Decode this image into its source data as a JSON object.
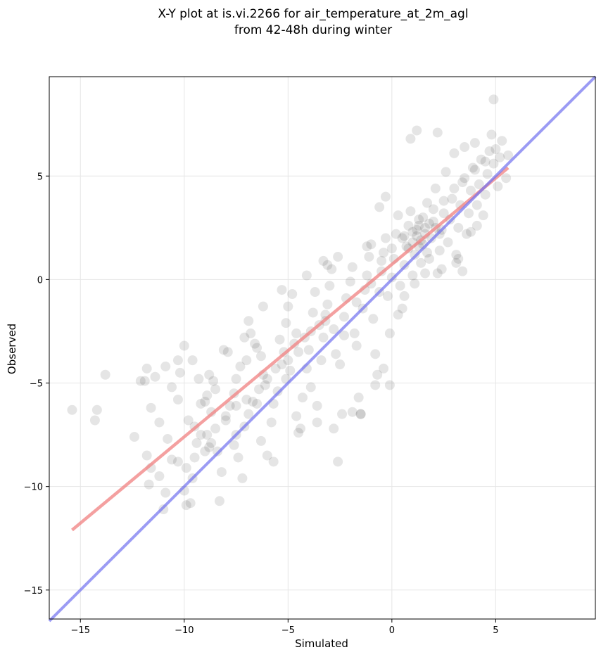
{
  "chart_data": {
    "type": "scatter",
    "title": "X-Y plot at is.vi.2266 for air_temperature_at_2m_agl",
    "subtitle": "from 42-48h during winter",
    "xlabel": "Simulated",
    "ylabel": "Observed",
    "xlim": [
      -16.5,
      9.8
    ],
    "ylim": [
      -16.4,
      9.8
    ],
    "xticks": [
      -15,
      -10,
      -5,
      0,
      5
    ],
    "yticks": [
      -15,
      -10,
      -5,
      0,
      5
    ],
    "xtick_labels": [
      "−15",
      "−10",
      "−5",
      "0",
      "5"
    ],
    "ytick_labels": [
      "−15",
      "−10",
      "−5",
      "0",
      "5"
    ],
    "grid": true,
    "colors": {
      "points": "#000000",
      "fit_line": "#f08080",
      "identity_line": "#7070f0"
    },
    "fit_line": {
      "x": [
        -15.4,
        5.6
      ],
      "y": [
        -12.1,
        5.4
      ]
    },
    "identity_line": {
      "x": [
        -16.5,
        9.8
      ],
      "y": [
        -16.5,
        9.8
      ]
    },
    "points": [
      [
        -15.4,
        -6.3
      ],
      [
        -14.2,
        -6.3
      ],
      [
        -14.3,
        -6.8
      ],
      [
        -13.8,
        -4.6
      ],
      [
        -12.4,
        -7.6
      ],
      [
        -11.9,
        -4.9
      ],
      [
        -11.8,
        -4.3
      ],
      [
        -11.4,
        -4.7
      ],
      [
        -11.2,
        -6.9
      ],
      [
        -11.8,
        -8.5
      ],
      [
        -11.6,
        -9.1
      ],
      [
        -11.7,
        -9.9
      ],
      [
        -11.2,
        -9.5
      ],
      [
        -10.9,
        -10.3
      ],
      [
        -11.0,
        -11.1
      ],
      [
        -10.8,
        -7.7
      ],
      [
        -10.6,
        -8.7
      ],
      [
        -10.3,
        -5.8
      ],
      [
        -10.2,
        -4.5
      ],
      [
        -10.0,
        -3.2
      ],
      [
        -10.6,
        -5.2
      ],
      [
        -9.8,
        -6.8
      ],
      [
        -9.5,
        -7.1
      ],
      [
        -9.2,
        -7.5
      ],
      [
        -9.0,
        -8.3
      ],
      [
        -9.9,
        -9.1
      ],
      [
        -9.5,
        -8.6
      ],
      [
        -10.0,
        -10.2
      ],
      [
        -9.7,
        -10.8
      ],
      [
        -9.9,
        -10.9
      ],
      [
        -9.0,
        -5.9
      ],
      [
        -9.2,
        -6.0
      ],
      [
        -8.9,
        -5.6
      ],
      [
        -8.7,
        -6.4
      ],
      [
        -9.3,
        -4.8
      ],
      [
        -8.8,
        -4.6
      ],
      [
        -8.6,
        -4.9
      ],
      [
        -8.5,
        -5.3
      ],
      [
        -8.7,
        -7.9
      ],
      [
        -8.4,
        -8.3
      ],
      [
        -8.2,
        -9.3
      ],
      [
        -8.3,
        -10.7
      ],
      [
        -8.0,
        -6.8
      ],
      [
        -7.8,
        -6.1
      ],
      [
        -7.6,
        -5.5
      ],
      [
        -7.5,
        -4.8
      ],
      [
        -7.3,
        -4.2
      ],
      [
        -7.0,
        -3.9
      ],
      [
        -7.9,
        -3.5
      ],
      [
        -7.6,
        -8.0
      ],
      [
        -7.4,
        -8.6
      ],
      [
        -7.2,
        -9.6
      ],
      [
        -7.1,
        -7.1
      ],
      [
        -6.9,
        -6.5
      ],
      [
        -6.7,
        -5.9
      ],
      [
        -6.8,
        -2.6
      ],
      [
        -6.9,
        -2.0
      ],
      [
        -6.5,
        -3.3
      ],
      [
        -6.3,
        -3.7
      ],
      [
        -6.2,
        -4.6
      ],
      [
        -6.1,
        -5.1
      ],
      [
        -6.3,
        -7.8
      ],
      [
        -6.0,
        -8.5
      ],
      [
        -5.8,
        -6.9
      ],
      [
        -5.7,
        -6.0
      ],
      [
        -5.5,
        -5.4
      ],
      [
        -5.4,
        -2.9
      ],
      [
        -5.2,
        -3.5
      ],
      [
        -5.1,
        -2.1
      ],
      [
        -5.0,
        -1.3
      ],
      [
        -5.3,
        -4.1
      ],
      [
        -5.1,
        -4.8
      ],
      [
        -4.9,
        -4.4
      ],
      [
        -4.7,
        -3.1
      ],
      [
        -4.6,
        -2.6
      ],
      [
        -4.8,
        -0.7
      ],
      [
        -4.6,
        -6.6
      ],
      [
        -4.4,
        -7.2
      ],
      [
        -4.3,
        -5.7
      ],
      [
        -4.1,
        -4.3
      ],
      [
        -4.0,
        -3.4
      ],
      [
        -3.9,
        -2.5
      ],
      [
        -3.8,
        -1.6
      ],
      [
        -3.7,
        -0.6
      ],
      [
        -3.9,
        -5.2
      ],
      [
        -3.6,
        -6.1
      ],
      [
        -3.4,
        -3.9
      ],
      [
        -3.3,
        -2.8
      ],
      [
        -3.2,
        -2.0
      ],
      [
        -3.1,
        -1.2
      ],
      [
        -3.0,
        -0.3
      ],
      [
        -2.9,
        0.5
      ],
      [
        -3.3,
        0.9
      ],
      [
        -2.8,
        -2.4
      ],
      [
        -2.7,
        -3.6
      ],
      [
        -2.5,
        -4.1
      ],
      [
        -2.6,
        -8.8
      ],
      [
        -2.4,
        -6.5
      ],
      [
        -2.3,
        -1.8
      ],
      [
        -2.2,
        -0.9
      ],
      [
        -2.0,
        -0.1
      ],
      [
        -1.9,
        0.6
      ],
      [
        -1.8,
        -2.6
      ],
      [
        -1.7,
        -3.2
      ],
      [
        -1.6,
        -5.7
      ],
      [
        -1.5,
        -6.5
      ],
      [
        -1.4,
        -1.4
      ],
      [
        -1.3,
        -0.5
      ],
      [
        -1.2,
        0.2
      ],
      [
        -1.1,
        1.1
      ],
      [
        -1.0,
        1.7
      ],
      [
        -0.9,
        -1.9
      ],
      [
        -0.8,
        -3.6
      ],
      [
        -0.7,
        -4.6
      ],
      [
        -0.6,
        -0.6
      ],
      [
        -0.5,
        0.4
      ],
      [
        -0.4,
        1.3
      ],
      [
        -0.3,
        2.0
      ],
      [
        -0.2,
        -0.8
      ],
      [
        -0.1,
        -2.6
      ],
      [
        -0.1,
        -5.1
      ],
      [
        0.0,
        0.1
      ],
      [
        0.1,
        1.0
      ],
      [
        0.2,
        2.2
      ],
      [
        0.3,
        3.1
      ],
      [
        0.4,
        -0.3
      ],
      [
        0.5,
        -1.4
      ],
      [
        0.6,
        0.7
      ],
      [
        0.7,
        1.6
      ],
      [
        0.8,
        2.6
      ],
      [
        0.9,
        3.3
      ],
      [
        1.0,
        0.2
      ],
      [
        1.1,
        1.2
      ],
      [
        1.2,
        2.1
      ],
      [
        1.3,
        2.9
      ],
      [
        1.4,
        0.8
      ],
      [
        1.5,
        1.7
      ],
      [
        1.6,
        2.5
      ],
      [
        1.7,
        3.7
      ],
      [
        1.8,
        1.0
      ],
      [
        1.9,
        2.0
      ],
      [
        2.0,
        2.8
      ],
      [
        2.1,
        4.4
      ],
      [
        2.2,
        0.3
      ],
      [
        2.3,
        1.4
      ],
      [
        2.4,
        2.4
      ],
      [
        2.5,
        3.2
      ],
      [
        2.6,
        5.2
      ],
      [
        2.7,
        1.8
      ],
      [
        2.8,
        2.9
      ],
      [
        2.9,
        3.9
      ],
      [
        3.0,
        6.1
      ],
      [
        3.1,
        1.2
      ],
      [
        3.2,
        2.5
      ],
      [
        3.3,
        3.6
      ],
      [
        3.4,
        4.7
      ],
      [
        3.5,
        6.4
      ],
      [
        3.6,
        2.2
      ],
      [
        3.7,
        3.2
      ],
      [
        3.8,
        4.3
      ],
      [
        3.9,
        5.4
      ],
      [
        4.0,
        6.6
      ],
      [
        4.1,
        3.6
      ],
      [
        4.2,
        4.6
      ],
      [
        4.3,
        5.8
      ],
      [
        4.4,
        3.1
      ],
      [
        4.5,
        4.1
      ],
      [
        4.6,
        5.1
      ],
      [
        4.7,
        6.2
      ],
      [
        4.8,
        7.0
      ],
      [
        4.9,
        5.6
      ],
      [
        5.0,
        6.3
      ],
      [
        5.1,
        4.5
      ],
      [
        5.2,
        5.9
      ],
      [
        5.3,
        6.7
      ],
      [
        5.5,
        4.9
      ],
      [
        5.6,
        6.0
      ],
      [
        4.9,
        8.7
      ],
      [
        1.2,
        7.2
      ],
      [
        2.2,
        7.1
      ],
      [
        0.9,
        6.8
      ],
      [
        -0.3,
        4.0
      ],
      [
        -0.6,
        3.5
      ],
      [
        -1.2,
        1.6
      ],
      [
        -2.6,
        1.1
      ],
      [
        -3.1,
        0.7
      ],
      [
        -4.1,
        0.2
      ],
      [
        -5.3,
        -0.5
      ],
      [
        -6.2,
        -1.3
      ],
      [
        -6.6,
        -3.1
      ],
      [
        -7.1,
        -2.8
      ],
      [
        -8.1,
        -3.4
      ],
      [
        -9.6,
        -3.9
      ],
      [
        -10.3,
        -3.9
      ],
      [
        -10.9,
        -4.2
      ],
      [
        -11.6,
        -6.2
      ],
      [
        -12.1,
        -4.9
      ],
      [
        -9.6,
        -9.6
      ],
      [
        -10.3,
        -8.8
      ],
      [
        -8.8,
        -8.1
      ],
      [
        -7.5,
        -7.5
      ],
      [
        -6.5,
        -6.0
      ],
      [
        -5.7,
        -8.8
      ],
      [
        -4.5,
        -7.4
      ],
      [
        -3.6,
        -6.9
      ],
      [
        -2.8,
        -7.2
      ],
      [
        -1.9,
        -6.4
      ],
      [
        -1.5,
        -6.5
      ],
      [
        -0.4,
        -4.3
      ],
      [
        -0.8,
        -5.1
      ],
      [
        0.3,
        -1.7
      ],
      [
        0.6,
        -0.8
      ],
      [
        1.1,
        -0.2
      ],
      [
        1.6,
        0.3
      ],
      [
        2.4,
        0.5
      ],
      [
        3.1,
        0.8
      ],
      [
        3.4,
        0.4
      ],
      [
        3.2,
        1.0
      ],
      [
        4.1,
        2.6
      ],
      [
        3.8,
        2.3
      ],
      [
        -3.2,
        -1.7
      ],
      [
        -3.5,
        -2.2
      ],
      [
        -4.2,
        -2.8
      ],
      [
        -4.5,
        -3.5
      ],
      [
        -5.0,
        -3.9
      ],
      [
        -5.6,
        -4.3
      ],
      [
        -6.0,
        -4.8
      ],
      [
        -6.4,
        -5.3
      ],
      [
        -7.0,
        -5.8
      ],
      [
        -7.5,
        -6.1
      ],
      [
        -8.0,
        -6.6
      ],
      [
        -8.5,
        -7.2
      ],
      [
        -8.9,
        -7.5
      ],
      [
        -9.4,
        -7.9
      ],
      [
        -2.3,
        -2.7
      ],
      [
        -1.7,
        -1.1
      ],
      [
        -1.0,
        -0.2
      ],
      [
        -0.5,
        0.9
      ],
      [
        0.0,
        1.5
      ],
      [
        0.5,
        2.0
      ],
      [
        1.0,
        2.3
      ],
      [
        1.3,
        2.6
      ],
      [
        1.5,
        3.0
      ],
      [
        2.0,
        3.4
      ],
      [
        2.5,
        3.8
      ],
      [
        3.0,
        4.4
      ],
      [
        3.5,
        4.9
      ],
      [
        4.0,
        5.3
      ],
      [
        4.5,
        5.7
      ],
      [
        1.0,
        1.8
      ],
      [
        1.2,
        2.4
      ],
      [
        1.4,
        1.9
      ],
      [
        1.6,
        2.2
      ],
      [
        1.8,
        2.7
      ],
      [
        0.8,
        1.5
      ],
      [
        0.6,
        2.1
      ],
      [
        1.3,
        1.6
      ],
      [
        1.7,
        1.3
      ],
      [
        2.1,
        2.5
      ],
      [
        2.3,
        2.2
      ]
    ]
  }
}
